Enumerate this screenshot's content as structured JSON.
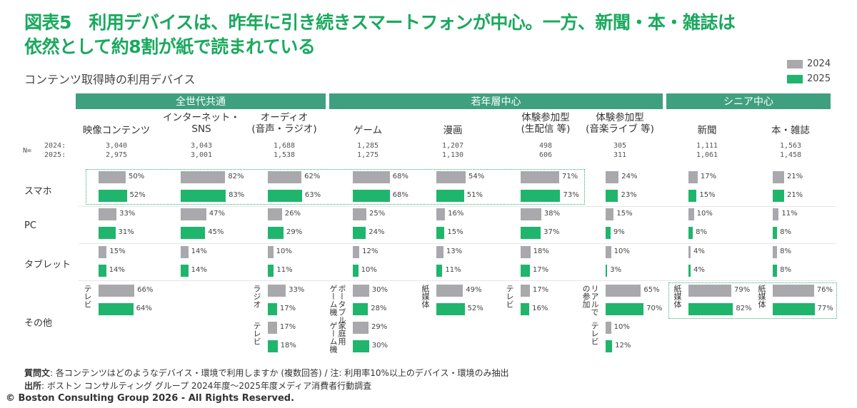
{
  "title": {
    "line1": "図表5　利用デバイスは、昨年に引き続きスマートフォンが中心。一方、新聞・本・雑誌は",
    "line2": "依然として約8割が紙で読まれている"
  },
  "subtitle": "コンテンツ取得時の利用デバイス",
  "legend": {
    "y2024": "2024",
    "y2025": "2025"
  },
  "colors": {
    "y2024": "#a9a8ad",
    "y2025": "#1fb56d",
    "group": "#3fa07f"
  },
  "groups": [
    "全世代共通",
    "若年層中心",
    "シニア中心"
  ],
  "n_labels": {
    "n": "N=",
    "y2024": "2024:",
    "y2025": "2025:"
  },
  "rows": [
    "スマホ",
    "PC",
    "タブレット",
    "その他"
  ],
  "chart_data": {
    "type": "bar",
    "categories": [
      {
        "label": "映像コンテンツ",
        "group": "全世代共通",
        "n2024": "3,040",
        "n2025": "2,975"
      },
      {
        "label": "インターネット・\nSNS",
        "group": "全世代共通",
        "n2024": "3,043",
        "n2025": "3,001"
      },
      {
        "label": "オーディオ\n(音声・ラジオ)",
        "group": "全世代共通",
        "n2024": "1,688",
        "n2025": "1,538"
      },
      {
        "label": "ゲーム",
        "group": "若年層中心",
        "n2024": "1,285",
        "n2025": "1,275"
      },
      {
        "label": "漫画",
        "group": "若年層中心",
        "n2024": "1,207",
        "n2025": "1,130"
      },
      {
        "label": "体験参加型\n(生配信 等)",
        "group": "若年層中心",
        "n2024": "498",
        "n2025": "606"
      },
      {
        "label": "体験参加型\n(音楽ライブ 等)",
        "group": "若年層中心",
        "n2024": "305",
        "n2025": "311"
      },
      {
        "label": "新聞",
        "group": "シニア中心",
        "n2024": "1,111",
        "n2025": "1,061"
      },
      {
        "label": "本・雑誌",
        "group": "シニア中心",
        "n2024": "1,563",
        "n2025": "1,458"
      }
    ],
    "series": [
      {
        "name": "2024"
      },
      {
        "name": "2025"
      }
    ],
    "unit": "%",
    "devices": {
      "スマホ": {
        "2024": [
          50,
          82,
          62,
          68,
          54,
          71,
          24,
          17,
          21
        ],
        "2025": [
          52,
          83,
          63,
          68,
          51,
          73,
          23,
          15,
          21
        ]
      },
      "PC": {
        "2024": [
          33,
          47,
          26,
          25,
          16,
          38,
          15,
          10,
          11
        ],
        "2025": [
          31,
          45,
          29,
          24,
          15,
          37,
          9,
          8,
          8
        ]
      },
      "タブレット": {
        "2024": [
          15,
          14,
          10,
          12,
          13,
          18,
          10,
          4,
          8
        ],
        "2025": [
          14,
          14,
          11,
          10,
          11,
          17,
          3,
          4,
          8
        ]
      }
    },
    "other": [
      {
        "col": 0,
        "slot": 0,
        "label": "テレビ",
        "v2024": 66,
        "v2025": 64
      },
      {
        "col": 2,
        "slot": 0,
        "label": "ラジオ",
        "v2024": 33,
        "v2025": 17
      },
      {
        "col": 2,
        "slot": 1,
        "label": "テレビ",
        "v2024": 17,
        "v2025": 18
      },
      {
        "col": 3,
        "slot": 0,
        "label": "ポータブル\nゲーム機",
        "v2024": 30,
        "v2025": 28
      },
      {
        "col": 3,
        "slot": 1,
        "label": "家庭用\nゲーム機",
        "v2024": 29,
        "v2025": 30
      },
      {
        "col": 4,
        "slot": 0,
        "label": "紙媒体",
        "v2024": 49,
        "v2025": 52
      },
      {
        "col": 5,
        "slot": 0,
        "label": "テレビ",
        "v2024": 17,
        "v2025": 16
      },
      {
        "col": 6,
        "slot": 0,
        "label": "リアルで\nの参加",
        "v2024": 65,
        "v2025": 70
      },
      {
        "col": 6,
        "slot": 1,
        "label": "テレビ",
        "v2024": 10,
        "v2025": 12
      },
      {
        "col": 7,
        "slot": 0,
        "label": "紙媒体",
        "v2024": 79,
        "v2025": 82
      },
      {
        "col": 8,
        "slot": 0,
        "label": "紙媒体",
        "v2024": 76,
        "v2025": 77
      }
    ]
  },
  "footnotes": {
    "q_label": "質問文",
    "q_text": ": 各コンテンツはどのようなデバイス・環境で利用しますか (複数回答) / 注: 利用率10%以上のデバイス・環境のみ抽出",
    "src_label": "出所",
    "src_text": ": ボストン コンサルティング グループ 2024年度～2025年度メディア消費者行動調査"
  },
  "copyright": "© Boston Consulting Group 2026 - All Rights Reserved."
}
